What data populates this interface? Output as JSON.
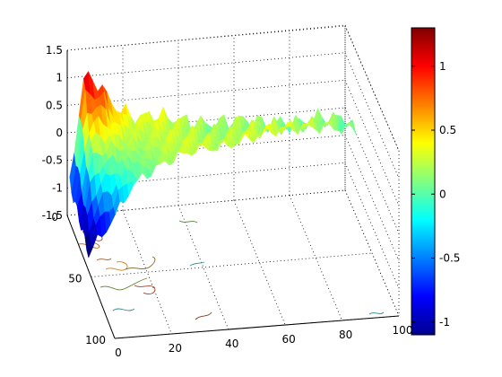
{
  "chart_data": {
    "type": "surface",
    "title": "",
    "xlabel": "",
    "ylabel": "",
    "zlabel": "",
    "x_ticks": [
      "0",
      "20",
      "40",
      "60",
      "80",
      "100"
    ],
    "y_ticks": [
      "0",
      "50",
      "100"
    ],
    "z_ticks": [
      "1.5",
      "1",
      "0.5",
      "0",
      "-0.5",
      "-1",
      "-1.5"
    ],
    "xlim": [
      0,
      100
    ],
    "ylim": [
      0,
      100
    ],
    "zlim": [
      -1.5,
      1.5
    ],
    "grid": true,
    "colormap": "jet",
    "colorbar": {
      "range": [
        -1.1,
        1.3
      ],
      "ticks": [
        "1",
        "0.5",
        "0",
        "-0.5",
        "-1"
      ],
      "tick_values": [
        1,
        0.5,
        0,
        -0.5,
        -1
      ]
    },
    "surface_profile": {
      "x": [
        0,
        5,
        10,
        15,
        20,
        25,
        30,
        40,
        50,
        60,
        70,
        80,
        90,
        100
      ],
      "z_back_edge": [
        -0.8,
        1.1,
        1.0,
        0.6,
        0.4,
        0.3,
        0.35,
        0.2,
        0.1,
        0.15,
        0.05,
        0.0,
        0.1,
        0.0
      ],
      "z_front_edge": [
        -1.2,
        -0.9,
        -0.6,
        -0.2,
        0.0,
        0.1,
        0.2,
        0.3,
        0.25,
        0.3,
        0.35,
        0.3,
        0.2,
        0.05
      ]
    },
    "contour_projection": "on floor (z = -1.5)"
  }
}
